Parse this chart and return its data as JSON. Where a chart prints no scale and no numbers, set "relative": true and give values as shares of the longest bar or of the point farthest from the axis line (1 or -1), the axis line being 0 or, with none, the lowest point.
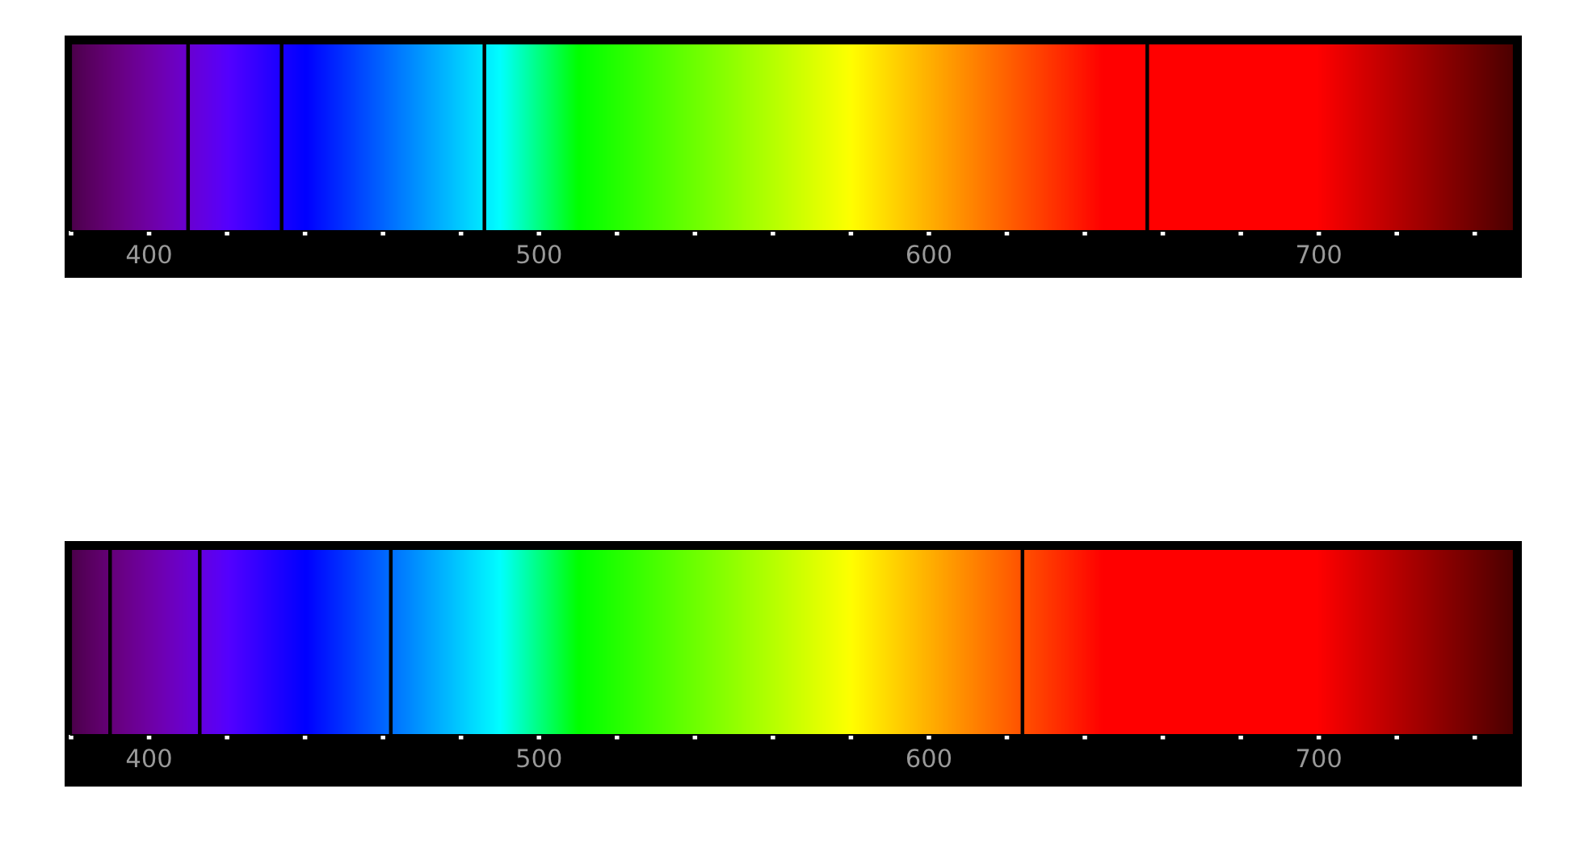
{
  "chart_data": [
    {
      "type": "bar",
      "relative": true,
      "x": [
        410,
        434,
        486,
        656
      ],
      "values": [
        1,
        1,
        1,
        1
      ],
      "color": "#000000",
      "xlim": [
        380,
        750
      ],
      "xticks": [
        {
          "value": 380,
          "label": null
        },
        400,
        {
          "value": 420,
          "label": null
        },
        {
          "value": 440,
          "label": null
        },
        {
          "value": 460,
          "label": null
        },
        {
          "value": 480,
          "label": null
        },
        500,
        {
          "value": 520,
          "label": null
        },
        {
          "value": 540,
          "label": null
        },
        {
          "value": 560,
          "label": null
        },
        {
          "value": 580,
          "label": null
        },
        600,
        {
          "value": 620,
          "label": null
        },
        {
          "value": 640,
          "label": null
        },
        {
          "value": 660,
          "label": null
        },
        {
          "value": 680,
          "label": null
        },
        700,
        {
          "value": 720,
          "label": null
        },
        {
          "value": 740,
          "label": null
        }
      ],
      "tick_labels": "x"
    },
    {
      "type": "bar",
      "relative": true,
      "x": [
        390,
        413,
        462,
        624
      ],
      "values": [
        1,
        1,
        1,
        1
      ],
      "color": "#000000",
      "xlim": [
        380,
        750
      ],
      "xticks": [
        {
          "value": 380,
          "label": null
        },
        400,
        {
          "value": 420,
          "label": null
        },
        {
          "value": 440,
          "label": null
        },
        {
          "value": 460,
          "label": null
        },
        {
          "value": 480,
          "label": null
        },
        500,
        {
          "value": 520,
          "label": null
        },
        {
          "value": 540,
          "label": null
        },
        {
          "value": 560,
          "label": null
        },
        {
          "value": 580,
          "label": null
        },
        600,
        {
          "value": 620,
          "label": null
        },
        {
          "value": 640,
          "label": null
        },
        {
          "value": 660,
          "label": null
        },
        {
          "value": 680,
          "label": null
        },
        700,
        {
          "value": 720,
          "label": null
        },
        {
          "value": 740,
          "label": null
        }
      ],
      "tick_labels": "x"
    }
  ]
}
